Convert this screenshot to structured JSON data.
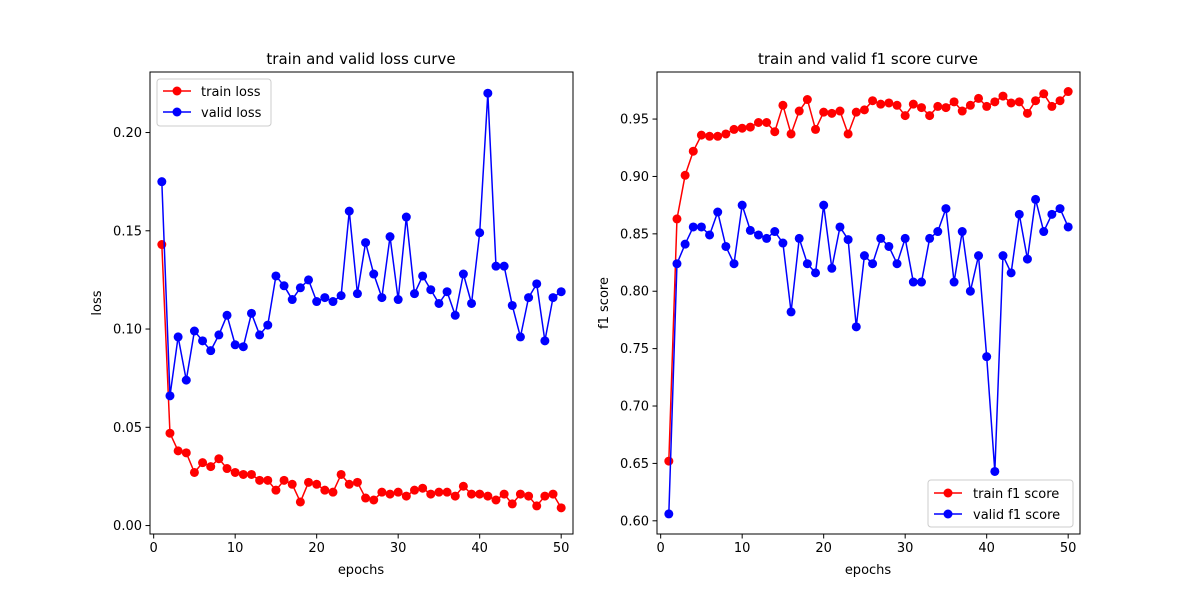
{
  "chart_data": [
    {
      "type": "line",
      "title": "train and valid loss curve",
      "xlabel": "epochs",
      "ylabel": "loss",
      "xlim": [
        -0.45,
        51.45
      ],
      "ylim": [
        -0.0043,
        0.2308
      ],
      "xticks": [
        0,
        10,
        20,
        30,
        40,
        50
      ],
      "xtick_labels": [
        "0",
        "10",
        "20",
        "30",
        "40",
        "50"
      ],
      "yticks": [
        0.0,
        0.05,
        0.1,
        0.15,
        0.2
      ],
      "ytick_labels": [
        "0.00",
        "0.05",
        "0.10",
        "0.15",
        "0.20"
      ],
      "legend_position": "top-left",
      "grid": false,
      "x": [
        1,
        2,
        3,
        4,
        5,
        6,
        7,
        8,
        9,
        10,
        11,
        12,
        13,
        14,
        15,
        16,
        17,
        18,
        19,
        20,
        21,
        22,
        23,
        24,
        25,
        26,
        27,
        28,
        29,
        30,
        31,
        32,
        33,
        34,
        35,
        36,
        37,
        38,
        39,
        40,
        41,
        42,
        43,
        44,
        45,
        46,
        47,
        48,
        49,
        50
      ],
      "series": [
        {
          "name": "train loss",
          "color": "#ff0000",
          "values": [
            0.143,
            0.047,
            0.038,
            0.037,
            0.027,
            0.032,
            0.03,
            0.034,
            0.029,
            0.027,
            0.026,
            0.026,
            0.023,
            0.023,
            0.018,
            0.023,
            0.021,
            0.012,
            0.022,
            0.021,
            0.018,
            0.017,
            0.026,
            0.021,
            0.022,
            0.014,
            0.013,
            0.017,
            0.016,
            0.017,
            0.015,
            0.018,
            0.019,
            0.016,
            0.017,
            0.017,
            0.015,
            0.02,
            0.016,
            0.016,
            0.015,
            0.013,
            0.016,
            0.011,
            0.016,
            0.015,
            0.01,
            0.015,
            0.016,
            0.009
          ]
        },
        {
          "name": "valid loss",
          "color": "#0000ff",
          "values": [
            0.175,
            0.066,
            0.096,
            0.074,
            0.099,
            0.094,
            0.089,
            0.097,
            0.107,
            0.092,
            0.091,
            0.108,
            0.097,
            0.102,
            0.127,
            0.122,
            0.115,
            0.121,
            0.125,
            0.114,
            0.116,
            0.114,
            0.117,
            0.16,
            0.118,
            0.144,
            0.128,
            0.116,
            0.147,
            0.115,
            0.157,
            0.118,
            0.127,
            0.12,
            0.113,
            0.119,
            0.107,
            0.128,
            0.113,
            0.149,
            0.22,
            0.132,
            0.132,
            0.112,
            0.096,
            0.116,
            0.123,
            0.094,
            0.116,
            0.119
          ]
        }
      ]
    },
    {
      "type": "line",
      "title": "train and valid f1 score curve",
      "xlabel": "epochs",
      "ylabel": "f1 score",
      "xlim": [
        -0.45,
        51.45
      ],
      "ylim": [
        0.5885,
        0.991
      ],
      "xticks": [
        0,
        10,
        20,
        30,
        40,
        50
      ],
      "xtick_labels": [
        "0",
        "10",
        "20",
        "30",
        "40",
        "50"
      ],
      "yticks": [
        0.6,
        0.65,
        0.7,
        0.75,
        0.8,
        0.85,
        0.9,
        0.95
      ],
      "ytick_labels": [
        "0.60",
        "0.65",
        "0.70",
        "0.75",
        "0.80",
        "0.85",
        "0.90",
        "0.95"
      ],
      "legend_position": "bottom-right",
      "grid": false,
      "x": [
        1,
        2,
        3,
        4,
        5,
        6,
        7,
        8,
        9,
        10,
        11,
        12,
        13,
        14,
        15,
        16,
        17,
        18,
        19,
        20,
        21,
        22,
        23,
        24,
        25,
        26,
        27,
        28,
        29,
        30,
        31,
        32,
        33,
        34,
        35,
        36,
        37,
        38,
        39,
        40,
        41,
        42,
        43,
        44,
        45,
        46,
        47,
        48,
        49,
        50
      ],
      "series": [
        {
          "name": "train f1 score",
          "color": "#ff0000",
          "values": [
            0.652,
            0.863,
            0.901,
            0.922,
            0.936,
            0.935,
            0.935,
            0.937,
            0.941,
            0.942,
            0.943,
            0.947,
            0.947,
            0.939,
            0.962,
            0.937,
            0.957,
            0.967,
            0.941,
            0.956,
            0.955,
            0.957,
            0.937,
            0.956,
            0.958,
            0.966,
            0.963,
            0.964,
            0.962,
            0.953,
            0.963,
            0.96,
            0.953,
            0.961,
            0.96,
            0.965,
            0.957,
            0.962,
            0.968,
            0.961,
            0.965,
            0.97,
            0.964,
            0.965,
            0.955,
            0.966,
            0.972,
            0.961,
            0.966,
            0.974
          ]
        },
        {
          "name": "valid f1 score",
          "color": "#0000ff",
          "values": [
            0.606,
            0.824,
            0.841,
            0.856,
            0.856,
            0.849,
            0.869,
            0.839,
            0.824,
            0.875,
            0.853,
            0.849,
            0.846,
            0.852,
            0.842,
            0.782,
            0.846,
            0.824,
            0.816,
            0.875,
            0.82,
            0.856,
            0.845,
            0.769,
            0.831,
            0.824,
            0.846,
            0.839,
            0.824,
            0.846,
            0.808,
            0.808,
            0.846,
            0.852,
            0.872,
            0.808,
            0.852,
            0.8,
            0.831,
            0.743,
            0.643,
            0.831,
            0.816,
            0.867,
            0.828,
            0.88,
            0.852,
            0.867,
            0.872,
            0.856
          ]
        }
      ]
    }
  ]
}
